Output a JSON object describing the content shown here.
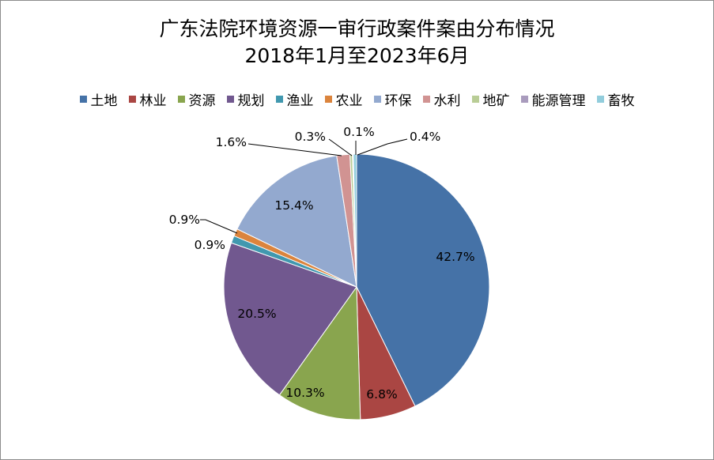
{
  "chart_data": {
    "type": "pie",
    "title_line1": "广东法院环境资源一审行政案件案由分布情况",
    "title_line2": "2018年1月至2023年6月",
    "legend_position": "top",
    "slices": [
      {
        "label": "土地",
        "value": 42.7,
        "display": "42.7%",
        "color": "#4572A7"
      },
      {
        "label": "林业",
        "value": 6.8,
        "display": "6.8%",
        "color": "#AA4643"
      },
      {
        "label": "资源",
        "value": 10.3,
        "display": "10.3%",
        "color": "#89A54E"
      },
      {
        "label": "规划",
        "value": 20.5,
        "display": "20.5%",
        "color": "#71588F"
      },
      {
        "label": "渔业",
        "value": 0.9,
        "display": "0.9%",
        "color": "#4198AF"
      },
      {
        "label": "农业",
        "value": 0.9,
        "display": "0.9%",
        "color": "#DB843D"
      },
      {
        "label": "环保",
        "value": 15.4,
        "display": "15.4%",
        "color": "#93A9CF"
      },
      {
        "label": "水利",
        "value": 1.6,
        "display": "1.6%",
        "color": "#D19392"
      },
      {
        "label": "地矿",
        "value": 0.3,
        "display": "0.3%",
        "color": "#B9CD96"
      },
      {
        "label": "能源管理",
        "value": 0.1,
        "display": "0.1%",
        "color": "#A99BBD"
      },
      {
        "label": "畜牧",
        "value": 0.4,
        "display": "0.4%",
        "color": "#92CDDC"
      }
    ]
  }
}
